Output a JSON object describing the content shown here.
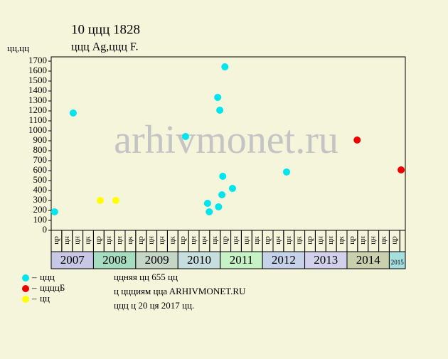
{
  "chart_data": {
    "type": "scatter",
    "title": "10 ццц 1828",
    "subtitle": "ццц Ag,ццц F.",
    "y_label": "цц,цц",
    "watermark": "arhivmonet.ru",
    "xlim": [
      2007,
      2015.38
    ],
    "ylim": [
      0,
      1700
    ],
    "yticks": [
      0,
      100,
      200,
      300,
      400,
      500,
      600,
      700,
      800,
      900,
      1000,
      1100,
      1200,
      1300,
      1400,
      1500,
      1600,
      1700
    ],
    "years": [
      2007,
      2008,
      2009,
      2010,
      2011,
      2012,
      2013,
      2014,
      2015
    ],
    "year_colors": [
      "#c8c8e6",
      "#a6dcc0",
      "#c6d6c6",
      "#c6dede",
      "#c6f2c6",
      "#c6d2e8",
      "#d2d0ea",
      "#cad0ae",
      "#a6dede"
    ],
    "quarter_labels": [
      "цр",
      "цн",
      "цн",
      "цк",
      "цр",
      "цн",
      "цн",
      "цк",
      "цр",
      "цн",
      "цн",
      "цк",
      "цр",
      "цн",
      "цн",
      "цк",
      "цр",
      "цн",
      "цн",
      "цк",
      "цр",
      "цн",
      "цн",
      "цк",
      "цр",
      "цн",
      "цн",
      "цк",
      "цр",
      "цн",
      "цн",
      "цк",
      "цр"
    ],
    "series": [
      {
        "name": "ццц",
        "color": "#00e5ee",
        "x": [
          2007.08,
          2007.52,
          2010.18,
          2010.7,
          2010.74,
          2010.94,
          2010.96,
          2010.99,
          2011.04,
          2011.06,
          2011.11,
          2011.29,
          2012.57
        ],
        "values": [
          186,
          1179,
          943,
          271,
          186,
          1336,
          236,
          1207,
          357,
          543,
          1643,
          421,
          586
        ]
      },
      {
        "name": "ццццБ",
        "color": "#ee0000",
        "x": [
          2014.24,
          2015.28
        ],
        "values": [
          907,
          607
        ]
      },
      {
        "name": "цц",
        "color": "#ffff00",
        "x": [
          2008.16,
          2008.53
        ],
        "values": [
          300,
          300
        ]
      }
    ],
    "footer": [
      "ццняя цц 655 цц",
      "ц ццциям ццa ARHIVMONET.RU",
      "ццц ц 20 ця 2017 цц."
    ]
  }
}
